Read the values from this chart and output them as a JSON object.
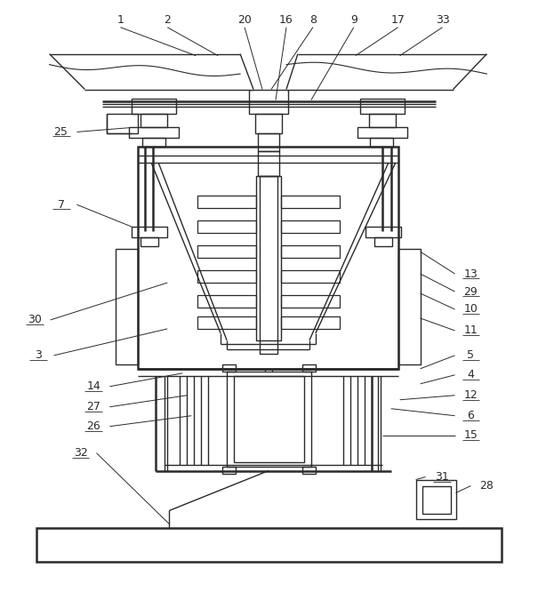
{
  "bg_color": "#ffffff",
  "lc": "#2a2a2a",
  "lw": 1.0,
  "lw_thick": 1.8,
  "fig_w": 6.05,
  "fig_h": 6.75
}
